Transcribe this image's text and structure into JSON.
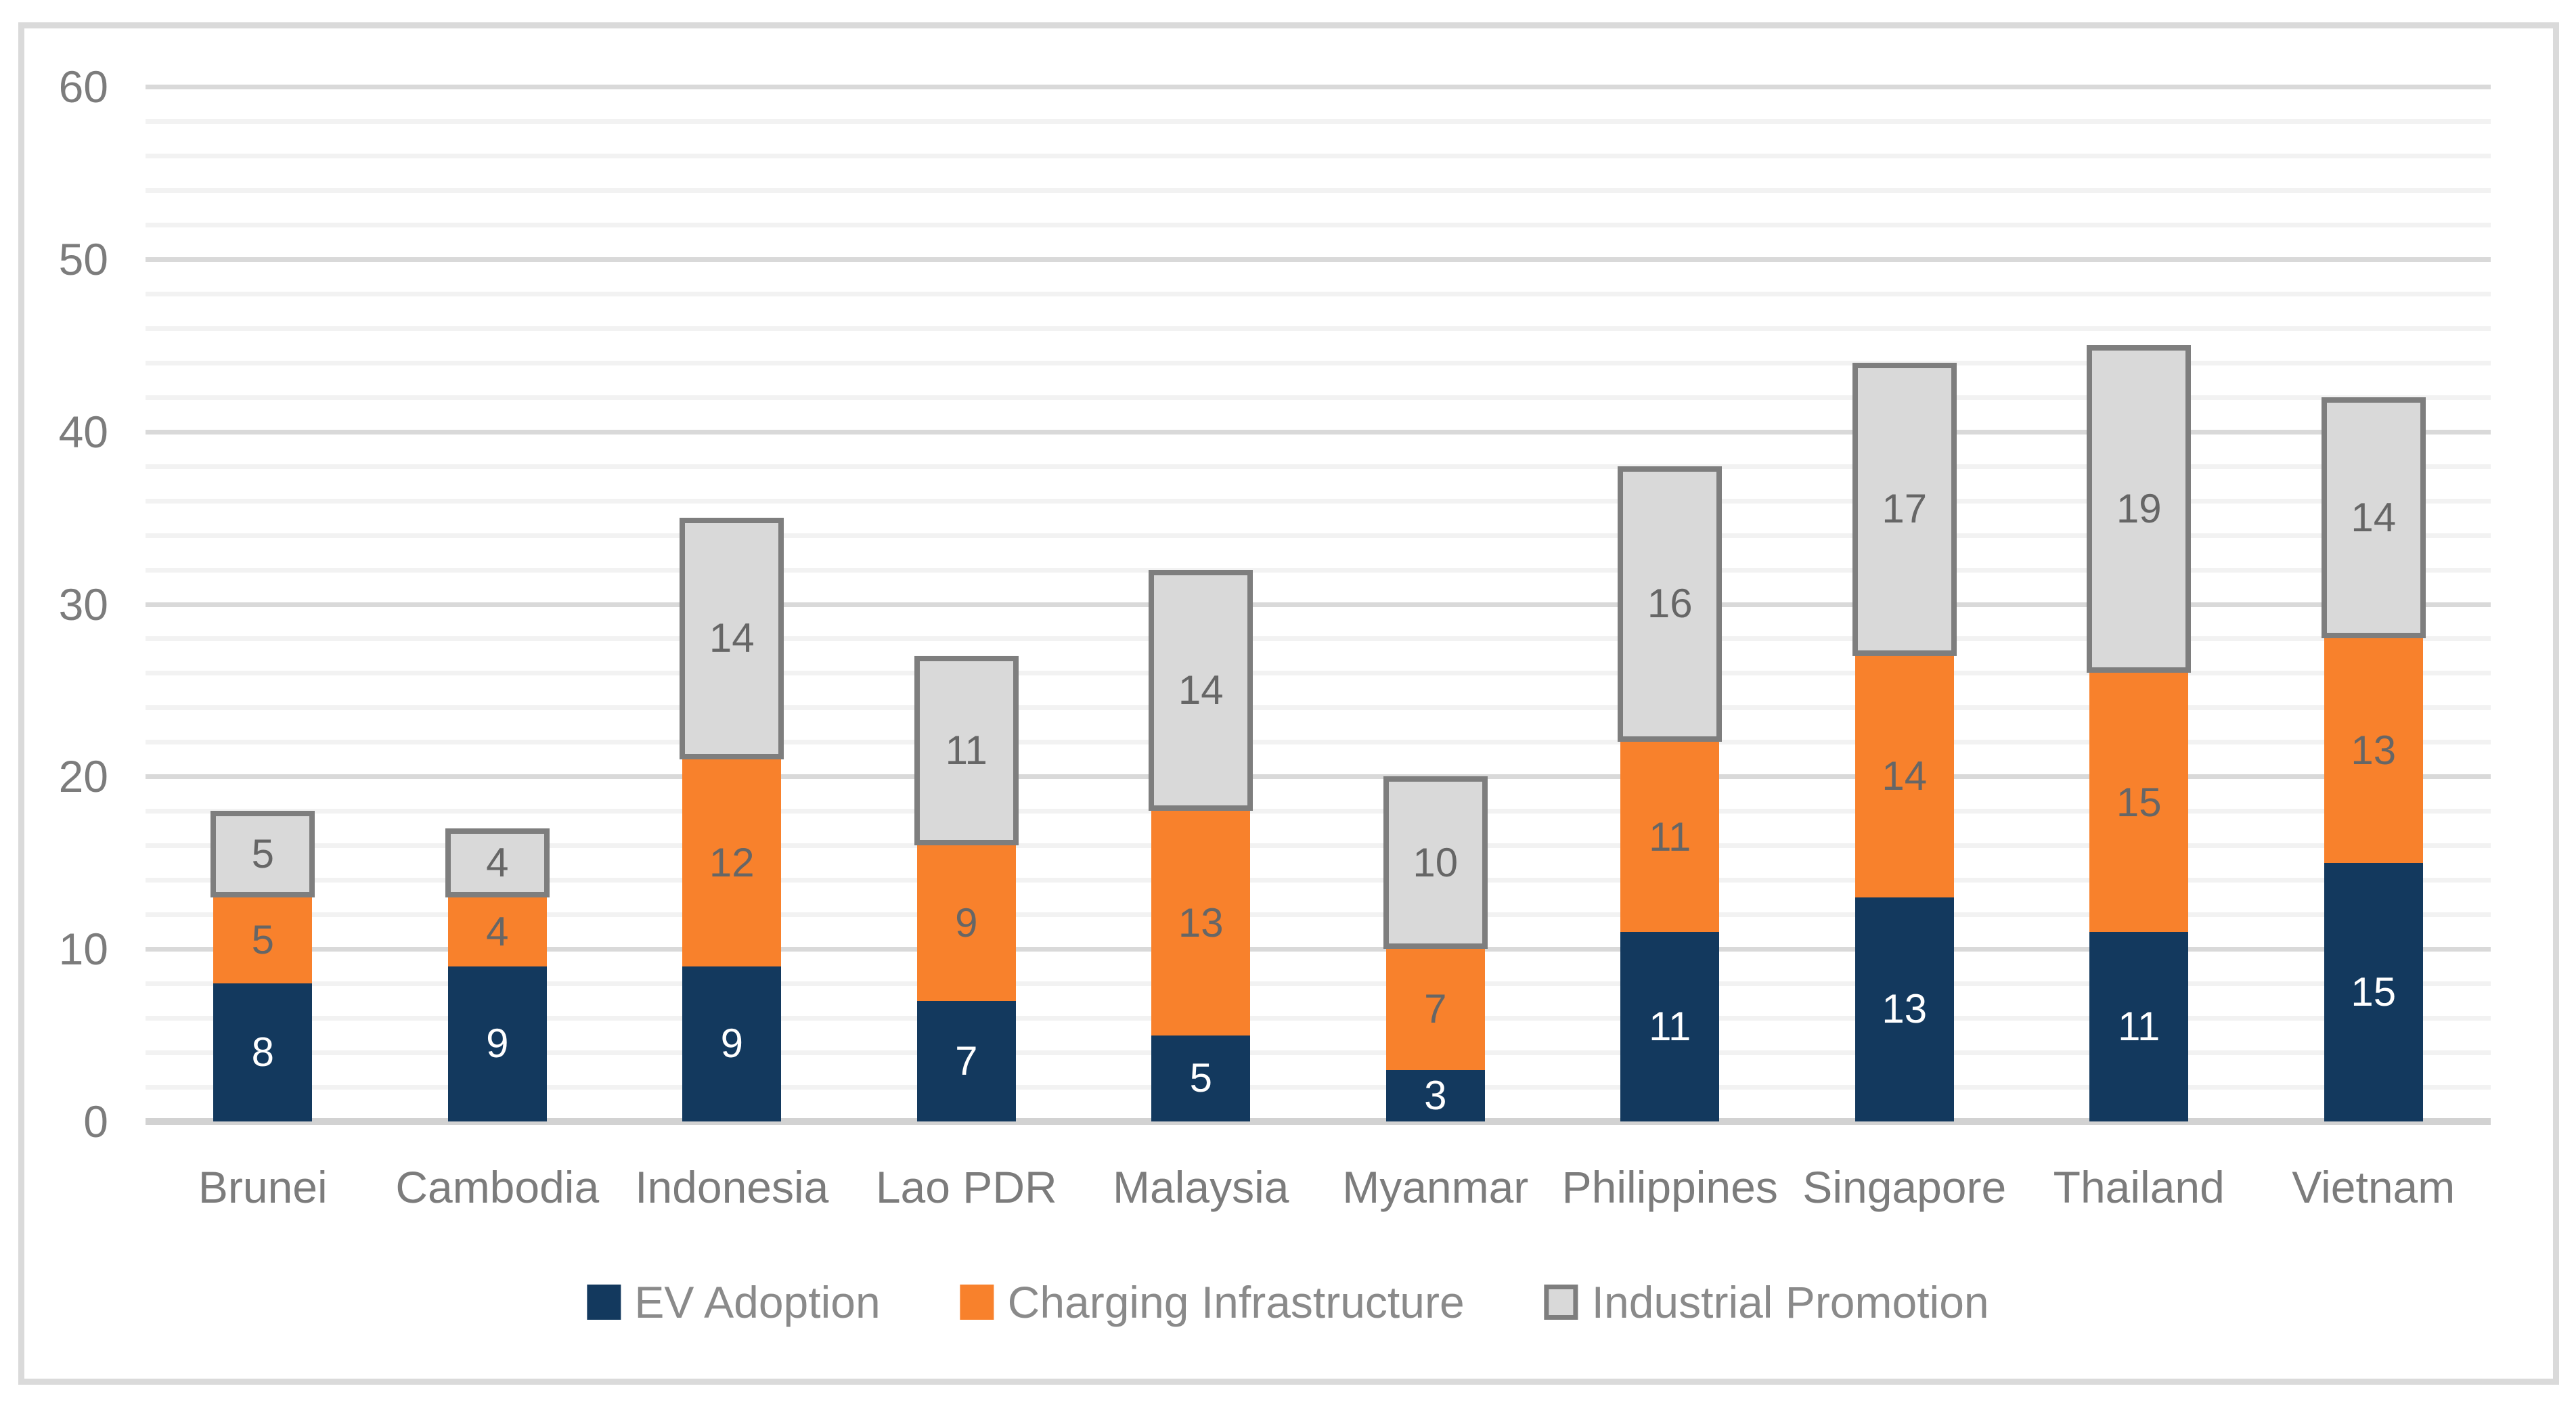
{
  "chart_data": {
    "type": "bar",
    "stacked": true,
    "orientation": "vertical",
    "categories": [
      "Brunei",
      "Cambodia",
      "Indonesia",
      "Lao PDR",
      "Malaysia",
      "Myanmar",
      "Philippines",
      "Singapore",
      "Thailand",
      "Vietnam"
    ],
    "series": [
      {
        "name": "EV Adoption",
        "color": "#13395E",
        "label_color": "#FFFFFF",
        "border_color": null,
        "values": [
          8,
          9,
          9,
          7,
          5,
          3,
          11,
          13,
          11,
          15
        ]
      },
      {
        "name": "Charging Infrastructure",
        "color": "#F8812C",
        "label_color": "#666666",
        "border_color": null,
        "values": [
          5,
          4,
          12,
          9,
          13,
          7,
          11,
          14,
          15,
          13
        ]
      },
      {
        "name": "Industrial Promotion",
        "color": "#D9D9D9",
        "label_color": "#666666",
        "border_color": "#7E7E7E",
        "values": [
          5,
          4,
          14,
          11,
          14,
          10,
          16,
          17,
          19,
          14
        ]
      }
    ],
    "totals": [
      18,
      17,
      35,
      27,
      32,
      20,
      38,
      44,
      45,
      42
    ],
    "title": "",
    "xlabel": "",
    "ylabel": "",
    "ylim": [
      0,
      60
    ],
    "y_major_step": 10,
    "y_minor_step": 2,
    "y_tick_labels": [
      "0",
      "10",
      "20",
      "30",
      "40",
      "50",
      "60"
    ],
    "grid": true,
    "data_labels": "inside-center",
    "legend_position": "bottom",
    "legend_entries": [
      "EV Adoption",
      "Charging Infrastructure",
      "Industrial Promotion"
    ]
  },
  "style_colors": {
    "frame_border": "#DADADA",
    "gridline_major": "#D9D9D9",
    "gridline_minor": "#F2F2F2",
    "axis_line": "#D2D2D2",
    "axis_text": "#7C7C7C",
    "legend_text": "#8A8A8A"
  }
}
